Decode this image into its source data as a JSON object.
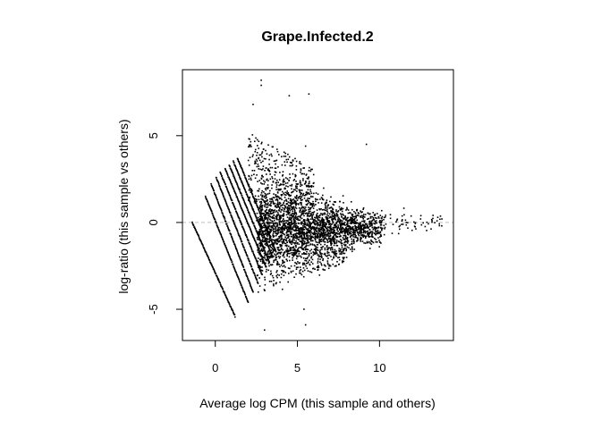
{
  "chart_data": {
    "type": "scatter",
    "title": "Grape.Infected.2",
    "xlabel": "Average log CPM (this sample and others)",
    "ylabel": "log-ratio (this sample vs others)",
    "xlim": [
      -2,
      14.5
    ],
    "ylim": [
      -6.8,
      8.8
    ],
    "x_ticks": [
      0,
      5,
      10
    ],
    "y_ticks": [
      -5,
      0,
      5
    ],
    "x_tick_labels": [
      "0",
      "5",
      "10"
    ],
    "y_tick_labels": [
      "-5",
      "0",
      "5"
    ],
    "reference_line_y": 0,
    "grid": false,
    "legend": "none",
    "point_color": "#000000",
    "reference_line_color": "#bfbfbf",
    "low_count_diagonal_bands": [
      {
        "x": [
          -1.4,
          1.2
        ],
        "y": [
          0.0,
          -5.4
        ]
      },
      {
        "x": [
          -0.6,
          2.0
        ],
        "y": [
          1.5,
          -4.6
        ]
      },
      {
        "x": [
          -0.25,
          2.3
        ],
        "y": [
          2.2,
          -4.0
        ]
      },
      {
        "x": [
          0.05,
          2.6
        ],
        "y": [
          2.6,
          -3.5
        ]
      },
      {
        "x": [
          0.3,
          2.85
        ],
        "y": [
          2.9,
          -3.0
        ]
      },
      {
        "x": [
          0.6,
          3.1
        ],
        "y": [
          3.1,
          -2.6
        ]
      },
      {
        "x": [
          0.85,
          3.3
        ],
        "y": [
          3.3,
          -2.3
        ]
      },
      {
        "x": [
          1.1,
          3.5
        ],
        "y": [
          3.5,
          -2.0
        ]
      },
      {
        "x": [
          1.35,
          3.7
        ],
        "y": [
          3.7,
          -1.7
        ]
      }
    ],
    "main_cloud": {
      "x_range": [
        2.5,
        11.5
      ],
      "center_y": -0.3,
      "spread_y_at_x3": 2.2,
      "spread_y_at_x10": 0.7
    },
    "outliers": [
      {
        "x": 2.8,
        "y": 8.2
      },
      {
        "x": 2.8,
        "y": 7.9
      },
      {
        "x": 4.5,
        "y": 7.3
      },
      {
        "x": 5.7,
        "y": 7.4
      },
      {
        "x": 9.2,
        "y": 4.5
      },
      {
        "x": 2.3,
        "y": 6.8
      },
      {
        "x": 5.5,
        "y": 4.4
      },
      {
        "x": 5.5,
        "y": -5.9
      },
      {
        "x": 5.4,
        "y": -5.0
      },
      {
        "x": 3.0,
        "y": -6.2
      },
      {
        "x": 12.5,
        "y": 0.2
      },
      {
        "x": 13.2,
        "y": 0.1
      },
      {
        "x": 13.8,
        "y": 0.2
      }
    ]
  }
}
